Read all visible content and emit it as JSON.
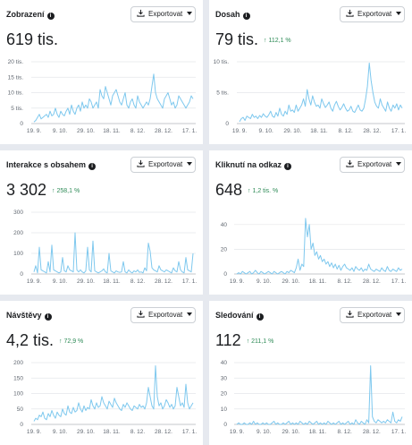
{
  "export_label": "Exportovat",
  "cards": [
    {
      "title": "Zobrazení",
      "value": "619 tis.",
      "delta": "",
      "chart_data": {
        "type": "line",
        "ylim": [
          0,
          20
        ],
        "yticks": [
          0,
          5,
          10,
          15,
          20
        ],
        "yticklabels": [
          "0",
          "5 tis.",
          "10 tis.",
          "15 tis.",
          "20 tis."
        ],
        "xticklabels": [
          "19. 9.",
          "9. 10.",
          "29. 10.",
          "18. 11.",
          "8. 12.",
          "28. 12.",
          "17. 1."
        ],
        "color": "#7ec8ee",
        "series": [
          {
            "values": [
              0.5,
              1,
              2,
              3,
              1.5,
              2,
              2.5,
              3,
              2,
              4,
              2.5,
              3,
              5,
              3,
              2,
              4,
              3,
              2.5,
              4,
              5,
              3,
              6,
              4,
              3,
              5,
              6,
              4,
              7,
              5,
              6,
              5,
              8,
              7,
              5,
              6,
              7,
              5,
              11,
              9,
              8,
              12,
              10,
              8,
              6,
              9,
              10,
              11,
              9,
              7,
              6,
              8,
              10,
              6,
              5,
              7,
              8,
              6,
              5,
              9,
              7,
              6,
              5,
              6,
              7,
              6,
              8,
              12,
              16,
              10,
              8,
              7,
              6,
              5,
              8,
              9,
              10,
              8,
              6,
              7,
              5,
              6,
              9,
              8,
              7,
              6,
              5,
              6,
              7,
              9,
              8
            ]
          }
        ]
      }
    },
    {
      "title": "Dosah",
      "value": "79 tis.",
      "delta": "↑ 112,1 %",
      "chart_data": {
        "type": "line",
        "ylim": [
          0,
          10
        ],
        "yticks": [
          0,
          5,
          10
        ],
        "yticklabels": [
          "0",
          "5 tis.",
          "10 tis."
        ],
        "xticklabels": [
          "19. 9.",
          "9. 10.",
          "29. 10.",
          "18. 11.",
          "8. 12.",
          "28. 12.",
          "17. 1."
        ],
        "color": "#7ec8ee",
        "series": [
          {
            "values": [
              0.3,
              0.8,
              1,
              0.5,
              1.2,
              1,
              0.8,
              1.5,
              1,
              1.2,
              0.8,
              1.3,
              1,
              1.6,
              1.2,
              1,
              1.4,
              2,
              1.2,
              1,
              1.8,
              1.2,
              2.5,
              1.5,
              1.2,
              2,
              1.5,
              3,
              2,
              2.2,
              1.8,
              3,
              2,
              2.5,
              3,
              4,
              2.8,
              5.5,
              4,
              3,
              4.5,
              3.5,
              2.8,
              3,
              2.5,
              4,
              3.2,
              2.6,
              3,
              3.5,
              2.5,
              2,
              3,
              3.6,
              2.8,
              2.2,
              2.6,
              3.2,
              2.5,
              2,
              2.2,
              2.8,
              2,
              1.8,
              2.4,
              3,
              2.2,
              2,
              2.5,
              4,
              6,
              9.8,
              7,
              5,
              3.5,
              2.8,
              2.5,
              4,
              3,
              2.5,
              2,
              3.5,
              2.5,
              2,
              3,
              2.5,
              3.2,
              2.2,
              3,
              2.5
            ]
          }
        ]
      }
    },
    {
      "title": "Interakce s obsahem",
      "value": "3 302",
      "delta": "↑ 258,1 %",
      "chart_data": {
        "type": "line",
        "ylim": [
          0,
          300
        ],
        "yticks": [
          0,
          100,
          200,
          300
        ],
        "yticklabels": [
          "0",
          "100",
          "200",
          "300"
        ],
        "xticklabels": [
          "19. 9.",
          "9. 10.",
          "29. 10.",
          "18. 11.",
          "8. 12.",
          "28. 12.",
          "17. 1."
        ],
        "color": "#7ec8ee",
        "series": [
          {
            "values": [
              10,
              40,
              5,
              130,
              20,
              15,
              10,
              5,
              60,
              10,
              140,
              20,
              15,
              10,
              5,
              10,
              80,
              15,
              10,
              40,
              20,
              15,
              10,
              200,
              20,
              10,
              20,
              10,
              5,
              15,
              130,
              20,
              10,
              160,
              15,
              10,
              5,
              10,
              15,
              25,
              10,
              5,
              100,
              15,
              10,
              5,
              15,
              10,
              8,
              10,
              60,
              10,
              5,
              20,
              10,
              5,
              15,
              10,
              20,
              8,
              10,
              5,
              30,
              15,
              150,
              110,
              30,
              20,
              15,
              10,
              40,
              20,
              15,
              10,
              20,
              15,
              10,
              5,
              30,
              15,
              10,
              60,
              20,
              10,
              5,
              80,
              20,
              15,
              10,
              100
            ]
          }
        ]
      }
    },
    {
      "title": "Kliknutí na odkaz",
      "value": "648",
      "delta": "↑ 1,2 tis. %",
      "chart_data": {
        "type": "line",
        "ylim": [
          0,
          50
        ],
        "yticks": [
          0,
          20,
          40
        ],
        "yticklabels": [
          "0",
          "20",
          "40"
        ],
        "xticklabels": [
          "19. 9.",
          "9. 10.",
          "29. 10.",
          "18. 11.",
          "8. 12.",
          "28. 12.",
          "17. 1."
        ],
        "color": "#7ec8ee",
        "series": [
          {
            "values": [
              0,
              1,
              0,
              2,
              1,
              0,
              1,
              2,
              0,
              1,
              3,
              1,
              0,
              2,
              1,
              0,
              1,
              2,
              1,
              0,
              2,
              1,
              0,
              1,
              2,
              1,
              0,
              2,
              1,
              3,
              2,
              1,
              5,
              12,
              3,
              8,
              6,
              45,
              30,
              40,
              20,
              25,
              15,
              18,
              12,
              15,
              10,
              12,
              8,
              10,
              6,
              9,
              5,
              8,
              4,
              7,
              3,
              6,
              8,
              5,
              4,
              3,
              5,
              2,
              6,
              4,
              3,
              5,
              2,
              4,
              3,
              8,
              4,
              3,
              2,
              4,
              3,
              2,
              5,
              3,
              2,
              6,
              3,
              2,
              4,
              3,
              2,
              5,
              3,
              4
            ]
          }
        ]
      }
    },
    {
      "title": "Návštěvy",
      "value": "4,2 tis.",
      "delta": "↑ 72,9 %",
      "chart_data": {
        "type": "line",
        "ylim": [
          0,
          200
        ],
        "yticks": [
          0,
          50,
          100,
          150,
          200
        ],
        "yticklabels": [
          "0",
          "50",
          "100",
          "150",
          "200"
        ],
        "xticklabels": [
          "19. 9.",
          "9. 10.",
          "29. 10.",
          "18. 11.",
          "8. 12.",
          "28. 12.",
          "17. 1."
        ],
        "color": "#7ec8ee",
        "series": [
          {
            "values": [
              10,
              20,
              15,
              30,
              25,
              40,
              20,
              15,
              35,
              25,
              45,
              30,
              20,
              40,
              30,
              25,
              50,
              35,
              30,
              60,
              40,
              35,
              55,
              40,
              45,
              70,
              50,
              40,
              60,
              45,
              55,
              50,
              80,
              60,
              50,
              70,
              55,
              60,
              90,
              70,
              60,
              50,
              75,
              65,
              55,
              85,
              70,
              60,
              50,
              45,
              65,
              55,
              70,
              60,
              50,
              45,
              60,
              55,
              50,
              65,
              55,
              60,
              50,
              70,
              120,
              90,
              60,
              50,
              190,
              90,
              60,
              70,
              50,
              60,
              80,
              70,
              55,
              65,
              50,
              60,
              120,
              90,
              60,
              70,
              55,
              130,
              70,
              50,
              60,
              70
            ]
          }
        ]
      }
    },
    {
      "title": "Sledování",
      "value": "112",
      "delta": "↑ 211,1 %",
      "chart_data": {
        "type": "line",
        "ylim": [
          0,
          40
        ],
        "yticks": [
          0,
          10,
          20,
          30,
          40
        ],
        "yticklabels": [
          "0",
          "10",
          "20",
          "30",
          "40"
        ],
        "xticklabels": [
          "19. 9.",
          "9. 10.",
          "29. 10.",
          "18. 11.",
          "8. 12.",
          "28. 12.",
          "17. 1."
        ],
        "color": "#7ec8ee",
        "series": [
          {
            "values": [
              0,
              1,
              0,
              0,
              1,
              0,
              0,
              1,
              0,
              2,
              0,
              1,
              0,
              0,
              1,
              0,
              1,
              0,
              0,
              1,
              2,
              0,
              1,
              0,
              0,
              1,
              0,
              1,
              2,
              0,
              1,
              0,
              1,
              0,
              2,
              1,
              0,
              1,
              0,
              2,
              1,
              0,
              1,
              2,
              0,
              1,
              0,
              1,
              0,
              2,
              1,
              0,
              1,
              0,
              1,
              2,
              0,
              1,
              0,
              1,
              2,
              0,
              1,
              0,
              3,
              1,
              0,
              2,
              1,
              0,
              3,
              1,
              38,
              5,
              2,
              1,
              3,
              2,
              1,
              2,
              1,
              3,
              2,
              1,
              8,
              2,
              1,
              3,
              2,
              5
            ]
          }
        ]
      }
    }
  ]
}
